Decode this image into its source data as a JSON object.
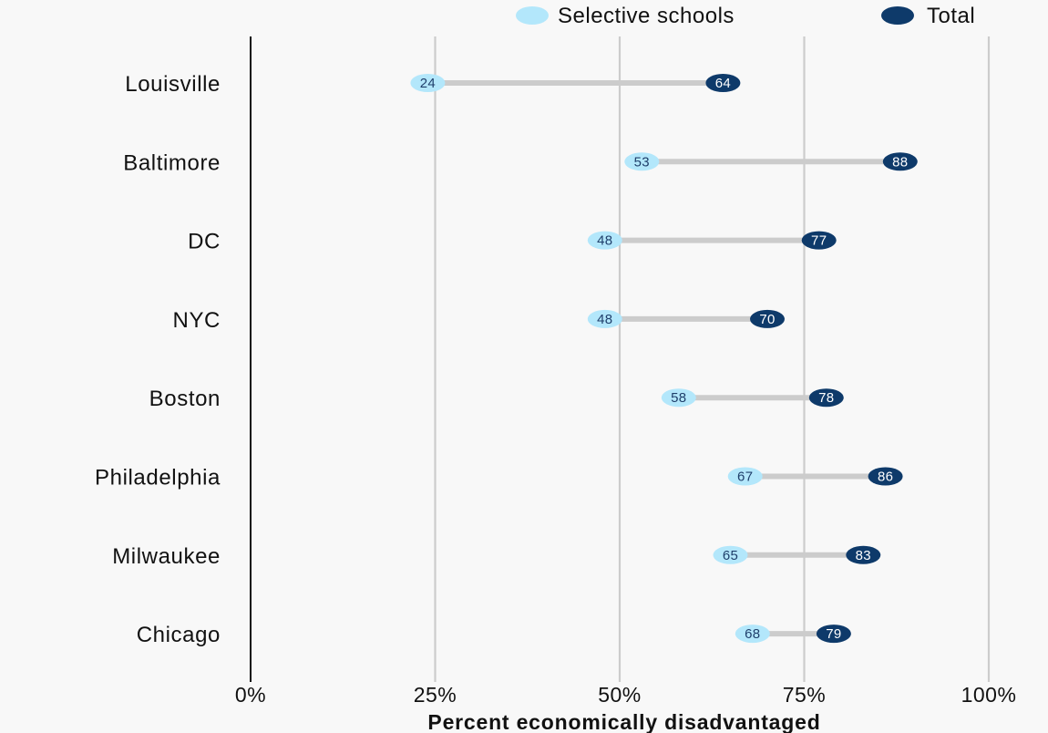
{
  "chart_data": {
    "type": "dumbbell",
    "xlabel": "Percent economically disadvantaged",
    "xlim": [
      0,
      100
    ],
    "xticks": [
      0,
      25,
      50,
      75,
      100
    ],
    "xtick_labels": [
      "0%",
      "25%",
      "50%",
      "75%",
      "100%"
    ],
    "grid": true,
    "legend_position": "top-right",
    "categories": [
      "Louisville",
      "Baltimore",
      "DC",
      "NYC",
      "Boston",
      "Philadelphia",
      "Milwaukee",
      "Chicago"
    ],
    "series": [
      {
        "name": "Selective schools",
        "color": "#b3e7fb",
        "label_color": "#1f3f6b",
        "values": [
          24,
          53,
          48,
          48,
          58,
          67,
          65,
          68
        ]
      },
      {
        "name": "Total",
        "color": "#0e3a6a",
        "label_color": "#ffffff",
        "values": [
          64,
          88,
          77,
          70,
          78,
          86,
          83,
          79
        ]
      }
    ]
  },
  "colors": {
    "background": "#f8f8f8",
    "connector": "#cccccc",
    "gridline": "#cccccc",
    "axis": "#111111"
  }
}
